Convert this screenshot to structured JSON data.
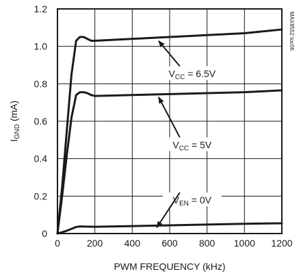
{
  "chart_data": {
    "type": "line",
    "title": "",
    "xlabel": "PWM FREQUENCY (kHz)",
    "ylabel": {
      "main": "I",
      "sub": "GND",
      "suffix": " (mA)"
    },
    "xlim": [
      0,
      1200
    ],
    "ylim": [
      0,
      1.2
    ],
    "x_ticks": [
      0,
      200,
      400,
      600,
      800,
      1000,
      1200
    ],
    "y_ticks": [
      0,
      0.2,
      0.4,
      0.6,
      0.8,
      1.0,
      1.2
    ],
    "x_tick_labels": [
      "0",
      "200",
      "400",
      "600",
      "800",
      "1000",
      "1200"
    ],
    "y_tick_labels": [
      "0",
      "0.2",
      "0.4",
      "0.6",
      "0.8",
      "1.0",
      "1.2"
    ],
    "grid": true,
    "legend": "none",
    "series": [
      {
        "label": {
          "main": "V",
          "sub": "CC",
          "suffix": " = 6.5V"
        },
        "color": "#1a1a1a",
        "x": [
          0,
          25,
          50,
          75,
          100,
          120,
          140,
          160,
          180,
          200,
          400,
          600,
          800,
          1000,
          1200
        ],
        "y": [
          0,
          0.25,
          0.55,
          0.85,
          1.03,
          1.05,
          1.05,
          1.04,
          1.03,
          1.03,
          1.04,
          1.05,
          1.06,
          1.07,
          1.09
        ],
        "annotation_point": [
          530,
          1.04
        ]
      },
      {
        "label": {
          "main": "V",
          "sub": "CC",
          "suffix": " = 5V"
        },
        "color": "#1a1a1a",
        "x": [
          0,
          25,
          50,
          75,
          100,
          120,
          140,
          160,
          180,
          200,
          400,
          600,
          800,
          1000,
          1200
        ],
        "y": [
          0,
          0.2,
          0.42,
          0.62,
          0.74,
          0.755,
          0.755,
          0.75,
          0.74,
          0.735,
          0.74,
          0.745,
          0.75,
          0.755,
          0.765
        ],
        "annotation_point": [
          530,
          0.74
        ]
      },
      {
        "label": {
          "main": "V",
          "sub": "EN",
          "suffix": " = 0V"
        },
        "color": "#1a1a1a",
        "x": [
          0,
          25,
          50,
          75,
          100,
          120,
          150,
          200,
          400,
          600,
          800,
          1000,
          1200
        ],
        "y": [
          0,
          0.007,
          0.015,
          0.025,
          0.035,
          0.038,
          0.037,
          0.036,
          0.04,
          0.044,
          0.048,
          0.052,
          0.055
        ],
        "annotation_point": [
          520,
          0.043
        ]
      }
    ],
    "annotations": [
      {
        "series": 0,
        "text_x": 720,
        "text_y": 0.85
      },
      {
        "series": 1,
        "text_x": 720,
        "text_y": 0.47
      },
      {
        "series": 2,
        "text_x": 720,
        "text_y": 0.175
      }
    ],
    "watermark": "MAX8552 toc06"
  }
}
